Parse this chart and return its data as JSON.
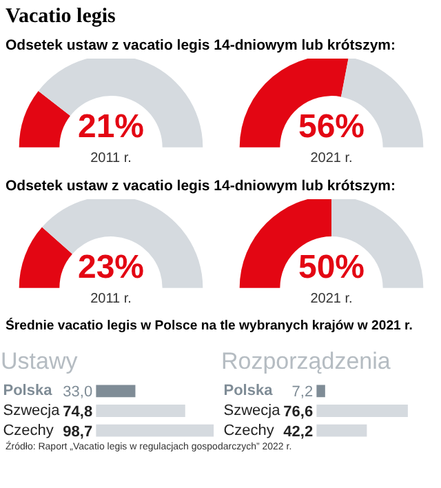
{
  "chart_data": [
    {
      "type": "donut",
      "title": "Vacatio legis",
      "subtitle": "Odsetek ustaw z vacatio legis 14-dniowym lub krótszym:",
      "xlabel": "2011 r.",
      "categories": [
        null,
        null
      ],
      "values": [
        21,
        79
      ],
      "colors": [
        "#e30613",
        "#d5dadf"
      ],
      "annotations": [
        "21%"
      ]
    },
    {
      "type": "donut",
      "xlabel": "2021 r.",
      "categories": [
        null,
        null
      ],
      "values": [
        56,
        44
      ],
      "colors": [
        "#e30613",
        "#d5dadf"
      ],
      "annotations": [
        "56%"
      ]
    },
    {
      "type": "donut",
      "subtitle": "Odsetek ustaw z vacatio legis 14-dniowym lub krótszym:",
      "xlabel": "2011 r.",
      "categories": [
        null,
        null
      ],
      "values": [
        23,
        77
      ],
      "colors": [
        "#e30613",
        "#d5dadf"
      ],
      "annotations": [
        "23%"
      ]
    },
    {
      "type": "donut",
      "xlabel": "2021 r.",
      "categories": [
        null,
        null
      ],
      "values": [
        50,
        50
      ],
      "colors": [
        "#e30613",
        "#d5dadf"
      ],
      "annotations": [
        "50%"
      ]
    },
    {
      "type": "bar",
      "orientation": "horizontal",
      "title": "Średnie vacatio legis w Polsce na tle wybranych krajów w 2021 r.",
      "subtitle": "Ustawy",
      "categories": [
        "Polska",
        "Szwecja",
        "Czechy"
      ],
      "values": [
        33.0,
        74.8,
        98.7
      ],
      "colors": [
        "#7f8c96",
        "#d5dadf",
        "#d5dadf"
      ],
      "value_labels": [
        "33,0",
        "74,8",
        "98,7"
      ]
    },
    {
      "type": "bar",
      "orientation": "horizontal",
      "subtitle": "Rozporządzenia",
      "categories": [
        "Polska",
        "Szwecja",
        "Czechy"
      ],
      "values": [
        7.2,
        76.6,
        42.2
      ],
      "colors": [
        "#7f8c96",
        "#d5dadf",
        "#d5dadf"
      ],
      "value_labels": [
        "7,2",
        "76,6",
        "42,2"
      ],
      "annotations": [
        "Źródło: Raport „Vacatio legis w regulacjach gospodarczych” 2022 r."
      ]
    }
  ]
}
